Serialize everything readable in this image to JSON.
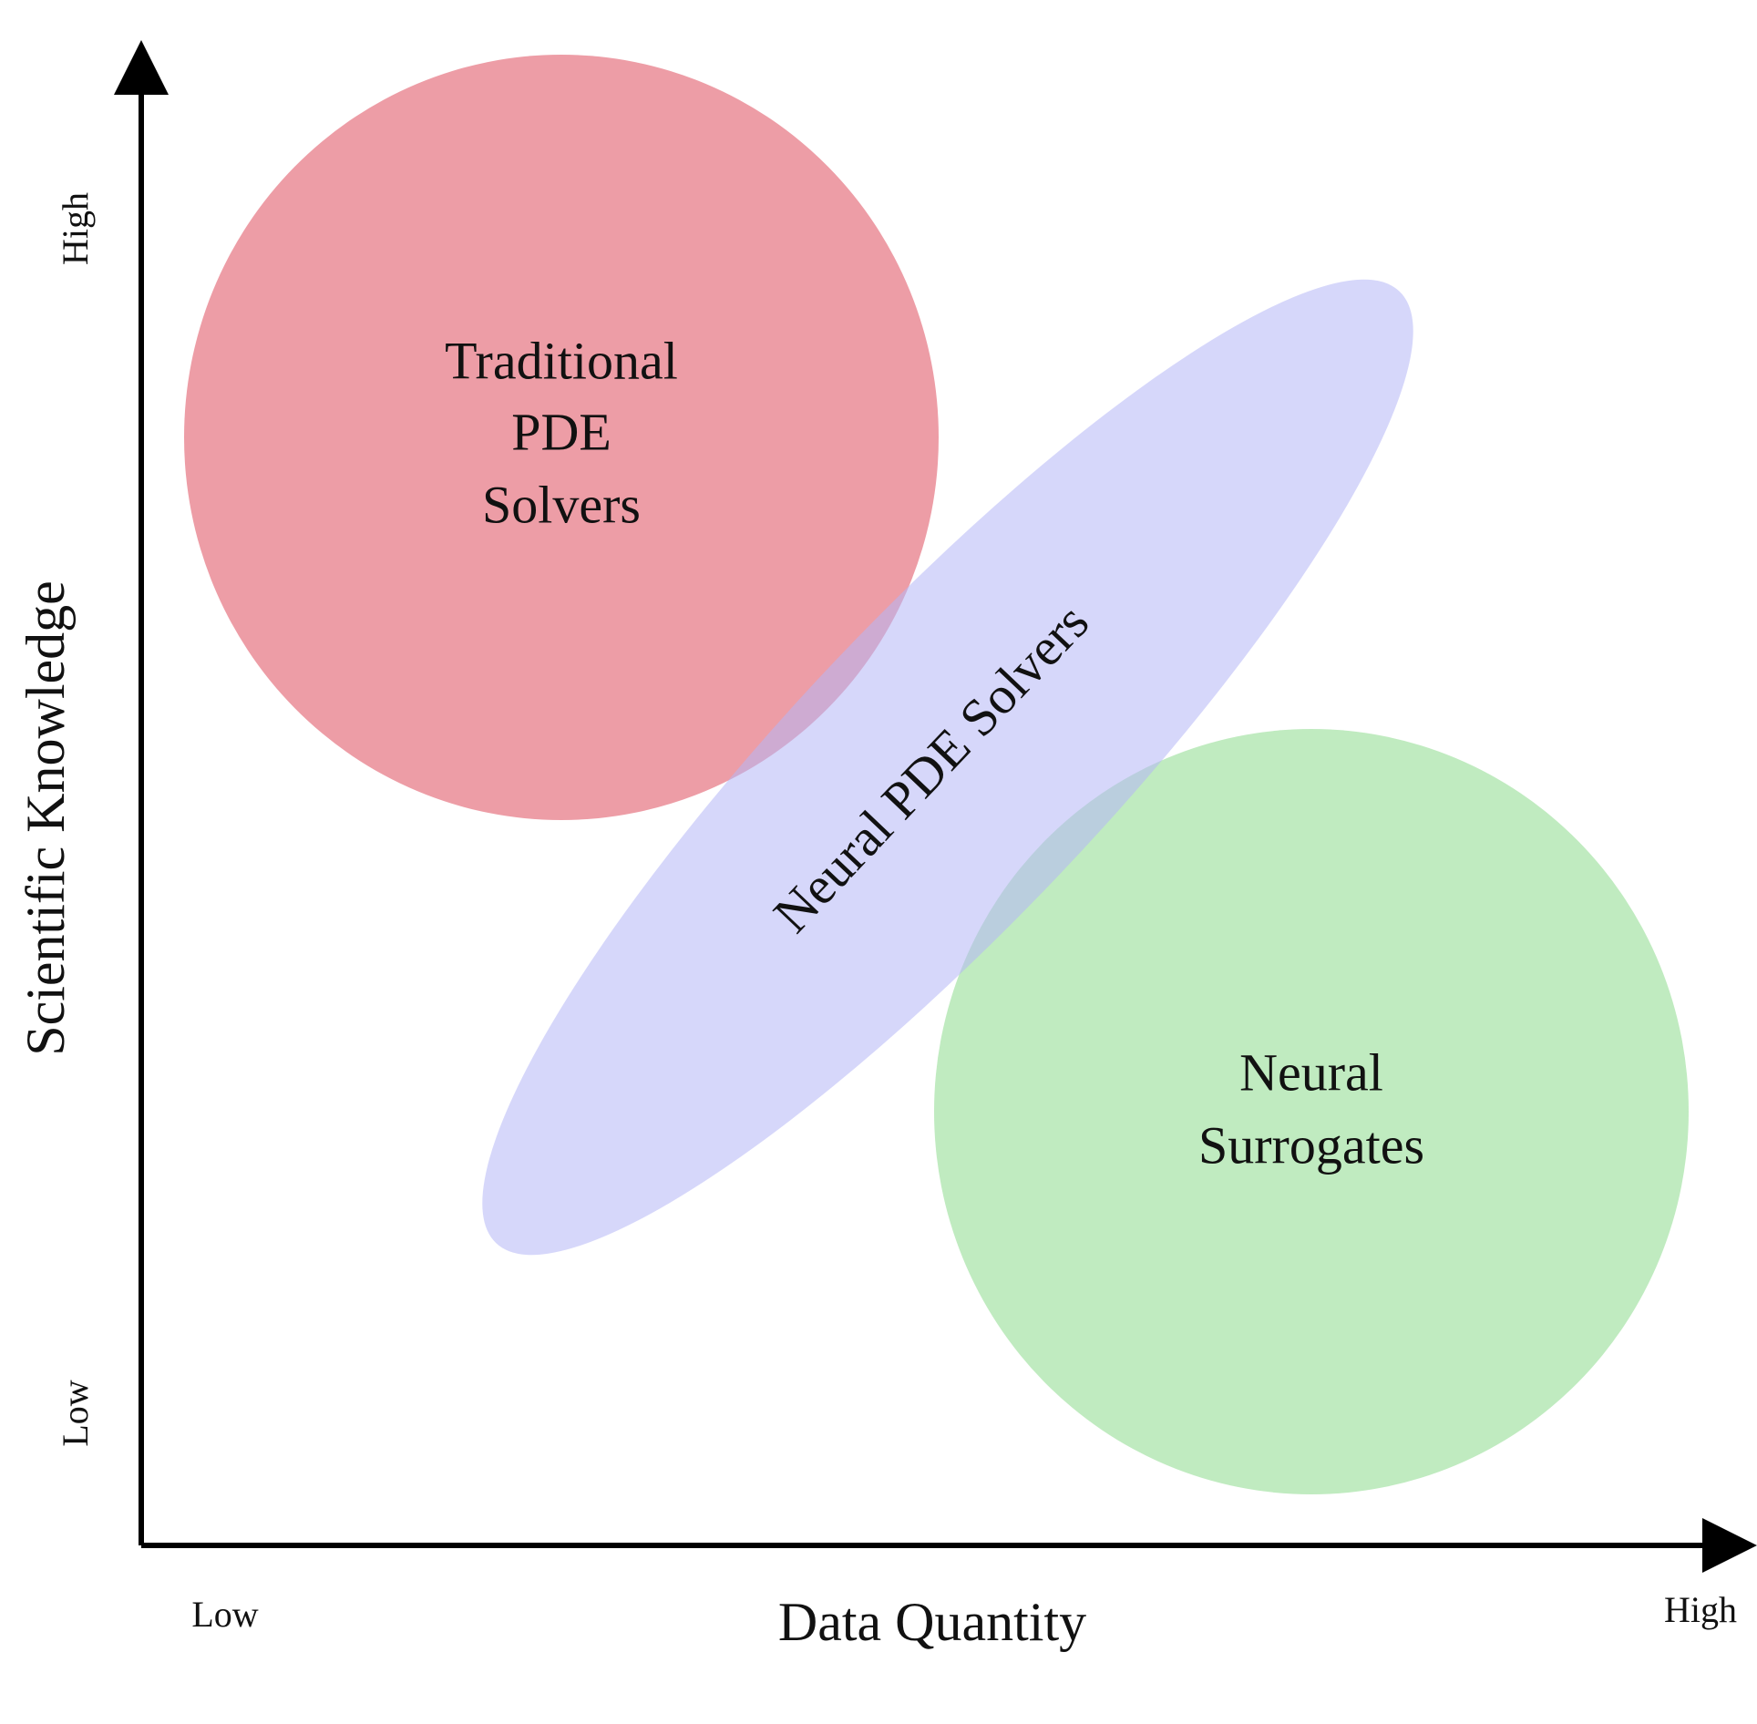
{
  "axes": {
    "x": {
      "title": "Data Quantity",
      "low": "Low",
      "high": "High"
    },
    "y": {
      "title": "Scientific Knowledge",
      "low": "Low",
      "high": "High"
    }
  },
  "regions": [
    {
      "lines": [
        "Traditional",
        "PDE",
        "Solvers"
      ]
    },
    {
      "lines": [
        "Neural PDE Solvers"
      ]
    },
    {
      "lines": [
        "Neural",
        "Surrogates"
      ]
    }
  ]
}
